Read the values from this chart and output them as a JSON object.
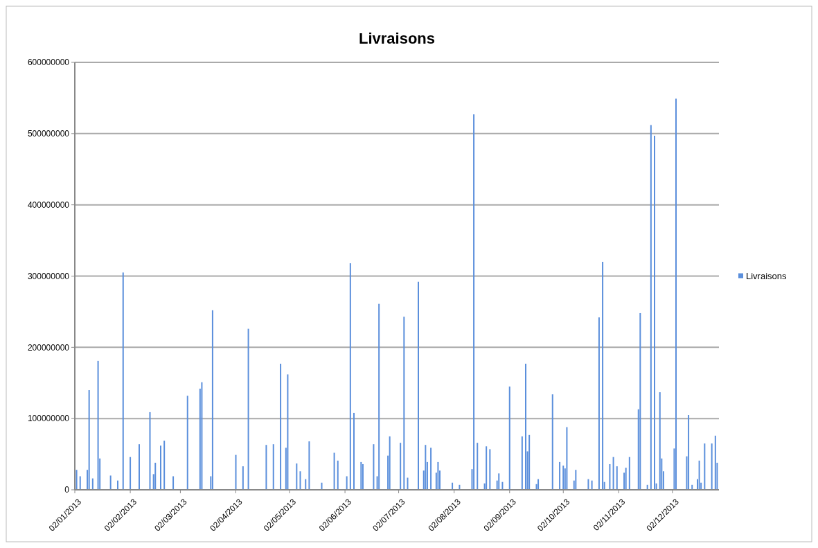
{
  "chart_data": {
    "type": "bar",
    "title": "Livraisons",
    "x": [
      "2013-01-03",
      "2013-01-05",
      "2013-01-09",
      "2013-01-10",
      "2013-01-12",
      "2013-01-15",
      "2013-01-16",
      "2013-01-22",
      "2013-01-26",
      "2013-01-29",
      "2013-02-02",
      "2013-02-07",
      "2013-02-13",
      "2013-02-15",
      "2013-02-16",
      "2013-02-19",
      "2013-02-21",
      "2013-02-26",
      "2013-03-06",
      "2013-03-13",
      "2013-03-14",
      "2013-03-19",
      "2013-03-20",
      "2013-04-02",
      "2013-04-06",
      "2013-04-09",
      "2013-04-19",
      "2013-04-23",
      "2013-04-27",
      "2013-04-30",
      "2013-05-01",
      "2013-05-06",
      "2013-05-08",
      "2013-05-11",
      "2013-05-13",
      "2013-05-20",
      "2013-05-27",
      "2013-05-29",
      "2013-06-03",
      "2013-06-05",
      "2013-06-07",
      "2013-06-11",
      "2013-06-12",
      "2013-06-18",
      "2013-06-20",
      "2013-06-21",
      "2013-06-26",
      "2013-06-27",
      "2013-07-03",
      "2013-07-05",
      "2013-07-07",
      "2013-07-13",
      "2013-07-16",
      "2013-07-17",
      "2013-07-18",
      "2013-07-20",
      "2013-07-23",
      "2013-07-24",
      "2013-07-25",
      "2013-08-01",
      "2013-08-05",
      "2013-08-12",
      "2013-08-13",
      "2013-08-15",
      "2013-08-19",
      "2013-08-20",
      "2013-08-22",
      "2013-08-26",
      "2013-08-27",
      "2013-08-29",
      "2013-09-02",
      "2013-09-09",
      "2013-09-11",
      "2013-09-12",
      "2013-09-13",
      "2013-09-17",
      "2013-09-18",
      "2013-09-26",
      "2013-09-30",
      "2013-10-02",
      "2013-10-03",
      "2013-10-04",
      "2013-10-08",
      "2013-10-09",
      "2013-10-16",
      "2013-10-18",
      "2013-10-22",
      "2013-10-24",
      "2013-10-25",
      "2013-10-28",
      "2013-10-30",
      "2013-11-01",
      "2013-11-05",
      "2013-11-06",
      "2013-11-08",
      "2013-11-13",
      "2013-11-14",
      "2013-11-18",
      "2013-11-20",
      "2013-11-22",
      "2013-11-23",
      "2013-11-25",
      "2013-11-26",
      "2013-11-27",
      "2013-12-03",
      "2013-12-04",
      "2013-12-10",
      "2013-12-11",
      "2013-12-13",
      "2013-12-16",
      "2013-12-17",
      "2013-12-18",
      "2013-12-20",
      "2013-12-24",
      "2013-12-26",
      "2013-12-27"
    ],
    "series": [
      {
        "name": "Livraisons",
        "color": "#5b8fdc",
        "values": [
          28000000,
          19000000,
          28000000,
          140000000,
          16000000,
          181000000,
          44000000,
          20000000,
          13000000,
          305000000,
          46000000,
          64000000,
          109000000,
          22000000,
          38000000,
          62000000,
          69000000,
          19000000,
          132000000,
          142000000,
          151000000,
          19000000,
          252000000,
          49000000,
          33000000,
          226000000,
          63000000,
          64000000,
          177000000,
          59000000,
          162000000,
          37000000,
          26000000,
          15000000,
          68000000,
          10000000,
          52000000,
          41000000,
          19000000,
          318000000,
          108000000,
          39000000,
          36000000,
          64000000,
          19000000,
          261000000,
          48000000,
          75000000,
          66000000,
          243000000,
          17000000,
          292000000,
          27000000,
          63000000,
          39000000,
          59000000,
          24000000,
          39000000,
          27000000,
          10000000,
          7000000,
          29000000,
          527000000,
          66000000,
          9000000,
          61000000,
          57000000,
          13000000,
          23000000,
          11000000,
          145000000,
          75000000,
          177000000,
          54000000,
          77000000,
          8000000,
          15000000,
          134000000,
          39000000,
          34000000,
          30000000,
          88000000,
          13000000,
          28000000,
          15000000,
          13000000,
          242000000,
          320000000,
          11000000,
          36000000,
          46000000,
          33000000,
          24000000,
          31000000,
          46000000,
          113000000,
          248000000,
          7000000,
          512000000,
          497000000,
          9000000,
          137000000,
          44000000,
          26000000,
          58000000,
          549000000,
          47000000,
          105000000,
          7000000,
          15000000,
          41000000,
          10000000,
          65000000,
          65000000,
          76000000,
          38000000
        ]
      }
    ],
    "xlim": [
      "2013-01-02",
      "2013-12-28"
    ],
    "xticks": [
      {
        "value": "2013-01-02",
        "label": "02/01/2013"
      },
      {
        "value": "2013-02-02",
        "label": "02/02/2013"
      },
      {
        "value": "2013-03-02",
        "label": "02/03/2013"
      },
      {
        "value": "2013-04-02",
        "label": "02/04/2013"
      },
      {
        "value": "2013-05-02",
        "label": "02/05/2013"
      },
      {
        "value": "2013-06-02",
        "label": "02/06/2013"
      },
      {
        "value": "2013-07-02",
        "label": "02/07/2013"
      },
      {
        "value": "2013-08-02",
        "label": "02/08/2013"
      },
      {
        "value": "2013-09-02",
        "label": "02/09/2013"
      },
      {
        "value": "2013-10-02",
        "label": "02/10/2013"
      },
      {
        "value": "2013-11-02",
        "label": "02/11/2013"
      },
      {
        "value": "2013-12-02",
        "label": "02/12/2013"
      }
    ],
    "ylim": [
      0,
      600000000
    ],
    "yticks": [
      0,
      100000000,
      200000000,
      300000000,
      400000000,
      500000000,
      600000000
    ],
    "grid": "y",
    "legend": "right"
  }
}
